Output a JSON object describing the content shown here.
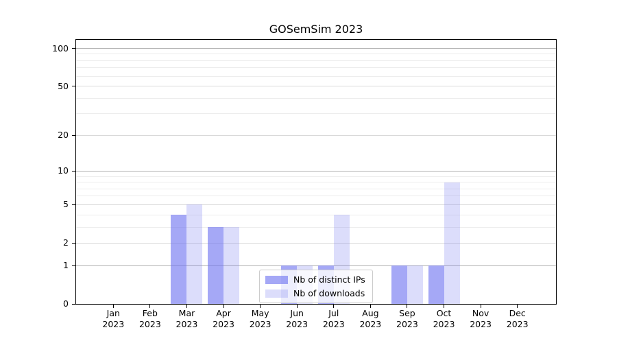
{
  "chart_data": {
    "type": "bar",
    "title": "GOSemSim 2023",
    "categories": [
      "Jan",
      "Feb",
      "Mar",
      "Apr",
      "May",
      "Jun",
      "Jul",
      "Aug",
      "Sep",
      "Oct",
      "Nov",
      "Dec"
    ],
    "category_year": "2023",
    "series": [
      {
        "name": "Nb of distinct IPs",
        "slug": "distinct-ips",
        "color": "rgba(110,114,240,0.62)",
        "values": [
          0,
          0,
          4,
          3,
          0,
          1,
          1,
          0,
          1,
          1,
          0,
          0
        ]
      },
      {
        "name": "Nb of downloads",
        "slug": "downloads",
        "color": "rgba(110,114,240,0.24)",
        "values": [
          0,
          0,
          5,
          3,
          0,
          1,
          4,
          0,
          1,
          8,
          0,
          0
        ]
      }
    ],
    "xlabel": "",
    "ylabel": "",
    "yscale": "log1p",
    "ylim": [
      0,
      117
    ],
    "y_major_ticks": [
      0,
      1,
      2,
      5,
      10,
      20,
      50,
      100
    ],
    "y_minor_gridlines": [
      3,
      4,
      6,
      7,
      8,
      9,
      30,
      40,
      60,
      70,
      80,
      90
    ],
    "grid": true,
    "legend_position": "lower center",
    "colors": {
      "grid_major_power": "#b0b0b0",
      "grid_major": "#d9d9d9",
      "grid_minor": "#ededed",
      "axis": "#000000",
      "text": "#000000",
      "background": "#ffffff"
    }
  }
}
